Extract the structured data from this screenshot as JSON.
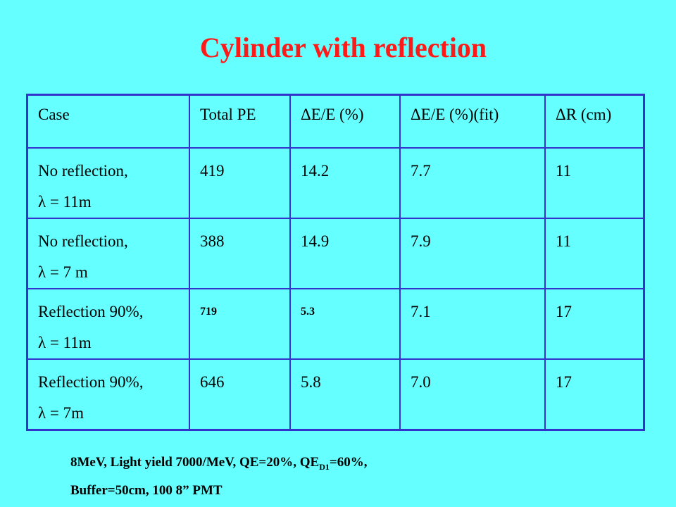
{
  "header": {
    "title": "Cylinder with reflection"
  },
  "table": {
    "columns": [
      "Case",
      "Total PE",
      "ΔE/E (%)",
      "ΔE/E (%)(fit)",
      "ΔR (cm)"
    ],
    "rows": [
      [
        [
          "No reflection,",
          "λ = 11m"
        ],
        "419",
        "14.2",
        "7.7",
        "11"
      ],
      [
        [
          "No reflection,",
          "λ = 7 m"
        ],
        "388",
        "14.9",
        "7.9",
        "11"
      ],
      [
        [
          "Reflection 90%,",
          "λ = 11m"
        ],
        "719",
        "5.3",
        "7.1",
        "17"
      ],
      [
        [
          "Reflection 90%,",
          "λ = 7m"
        ],
        "646",
        "5.8",
        "7.0",
        "17"
      ]
    ]
  },
  "note": {
    "line1": "8MeV, Light yield 7000/MeV, QE=20%, QE",
    "line1_sub": "D1",
    "line1_end": "=60%,",
    "line2": "Buffer=50cm, 100 8” PMT"
  }
}
